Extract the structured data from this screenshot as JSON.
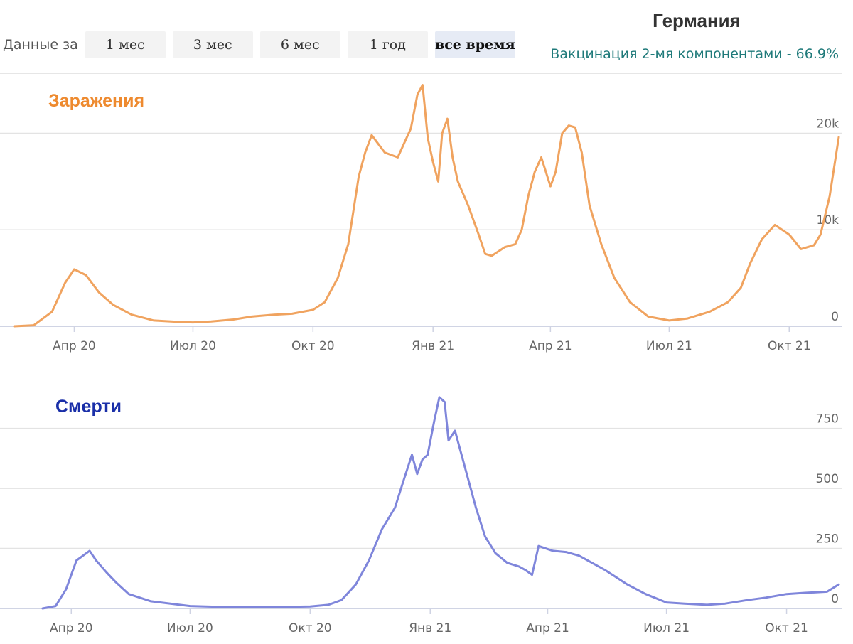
{
  "header": {
    "country": "Германия",
    "vaccination": "Вакцинация 2-мя компонентами - 66.9%"
  },
  "range": {
    "label": "Данные за",
    "buttons": [
      "1 мес",
      "3 мес",
      "6 мес",
      "1 год",
      "все время"
    ],
    "active": "все время"
  },
  "colors": {
    "cases": "#f0a35f",
    "cases_title": "#ee8a2f",
    "deaths": "#7f86db",
    "deaths_title": "#1a2fa8"
  },
  "chart_data": [
    {
      "type": "line",
      "title": "Заражения",
      "x_ticks": [
        "Апр 20",
        "Июл 20",
        "Окт 20",
        "Янв 21",
        "Апр 21",
        "Июл 21",
        "Окт 21"
      ],
      "y_ticks": [
        "0",
        "10k",
        "20k"
      ],
      "ylim": [
        0,
        26000
      ],
      "xlim": [
        "2020-02-15",
        "2021-11-08"
      ],
      "grid": true,
      "series": [
        {
          "x": [
            "2020-02-15",
            "2020-03-01",
            "2020-03-15",
            "2020-03-25",
            "2020-04-01",
            "2020-04-10",
            "2020-04-20",
            "2020-05-01",
            "2020-05-15",
            "2020-06-01",
            "2020-06-20",
            "2020-07-01",
            "2020-07-15",
            "2020-08-01",
            "2020-08-15",
            "2020-09-01",
            "2020-09-15",
            "2020-10-01",
            "2020-10-10",
            "2020-10-20",
            "2020-10-28",
            "2020-11-05",
            "2020-11-10",
            "2020-11-15",
            "2020-11-25",
            "2020-12-05",
            "2020-12-10",
            "2020-12-15",
            "2020-12-20",
            "2020-12-24",
            "2020-12-28",
            "2021-01-01",
            "2021-01-05",
            "2021-01-08",
            "2021-01-12",
            "2021-01-16",
            "2021-01-20",
            "2021-01-28",
            "2021-02-05",
            "2021-02-10",
            "2021-02-15",
            "2021-02-25",
            "2021-03-05",
            "2021-03-10",
            "2021-03-15",
            "2021-03-20",
            "2021-03-25",
            "2021-04-01",
            "2021-04-05",
            "2021-04-10",
            "2021-04-15",
            "2021-04-20",
            "2021-04-25",
            "2021-05-01",
            "2021-05-10",
            "2021-05-20",
            "2021-06-01",
            "2021-06-15",
            "2021-07-01",
            "2021-07-15",
            "2021-08-01",
            "2021-08-15",
            "2021-08-25",
            "2021-09-01",
            "2021-09-10",
            "2021-09-20",
            "2021-10-01",
            "2021-10-10",
            "2021-10-20",
            "2021-10-25",
            "2021-11-01",
            "2021-11-08"
          ],
          "y": [
            0,
            100,
            1500,
            4500,
            5900,
            5300,
            3500,
            2200,
            1200,
            600,
            450,
            400,
            500,
            700,
            1000,
            1200,
            1300,
            1700,
            2500,
            5000,
            8500,
            15500,
            18000,
            19800,
            18000,
            17500,
            19000,
            20500,
            24000,
            25000,
            19500,
            17000,
            15000,
            20000,
            21500,
            17500,
            15000,
            12500,
            9500,
            7500,
            7300,
            8200,
            8500,
            10000,
            13500,
            16000,
            17500,
            14500,
            16000,
            20000,
            20800,
            20600,
            18000,
            12500,
            8500,
            5000,
            2500,
            1000,
            600,
            800,
            1500,
            2500,
            4000,
            6500,
            9000,
            10500,
            9500,
            8000,
            8400,
            9500,
            13500,
            19600
          ]
        }
      ]
    },
    {
      "type": "line",
      "title": "Смерти",
      "x_ticks": [
        "Апр 20",
        "Июл 20",
        "Окт 20",
        "Янв 21",
        "Апр 21",
        "Июл 21",
        "Окт 21"
      ],
      "y_ticks": [
        "0",
        "250",
        "500",
        "750"
      ],
      "ylim": [
        0,
        900
      ],
      "xlim": [
        "2020-02-20",
        "2021-11-10"
      ],
      "grid": true,
      "series": [
        {
          "x": [
            "2020-03-10",
            "2020-03-20",
            "2020-03-28",
            "2020-04-05",
            "2020-04-10",
            "2020-04-15",
            "2020-04-20",
            "2020-04-28",
            "2020-05-05",
            "2020-05-15",
            "2020-06-01",
            "2020-07-01",
            "2020-08-01",
            "2020-09-01",
            "2020-10-01",
            "2020-10-15",
            "2020-10-25",
            "2020-11-05",
            "2020-11-15",
            "2020-11-25",
            "2020-12-05",
            "2020-12-12",
            "2020-12-18",
            "2020-12-22",
            "2020-12-26",
            "2020-12-30",
            "2021-01-04",
            "2021-01-08",
            "2021-01-12",
            "2021-01-15",
            "2021-01-20",
            "2021-01-25",
            "2021-01-30",
            "2021-02-05",
            "2021-02-12",
            "2021-02-20",
            "2021-03-01",
            "2021-03-10",
            "2021-03-15",
            "2021-03-20",
            "2021-03-25",
            "2021-04-05",
            "2021-04-15",
            "2021-04-25",
            "2021-05-05",
            "2021-05-15",
            "2021-06-01",
            "2021-06-15",
            "2021-07-01",
            "2021-07-15",
            "2021-08-01",
            "2021-08-15",
            "2021-09-01",
            "2021-09-15",
            "2021-10-01",
            "2021-10-15",
            "2021-11-01",
            "2021-11-10"
          ],
          "y": [
            0,
            10,
            80,
            200,
            220,
            240,
            200,
            150,
            110,
            60,
            30,
            10,
            5,
            5,
            8,
            15,
            35,
            100,
            200,
            330,
            420,
            540,
            640,
            560,
            620,
            640,
            780,
            880,
            860,
            700,
            740,
            640,
            540,
            420,
            300,
            230,
            190,
            175,
            160,
            140,
            260,
            240,
            235,
            220,
            190,
            160,
            100,
            60,
            25,
            20,
            15,
            20,
            35,
            45,
            60,
            65,
            70,
            100
          ]
        }
      ]
    }
  ]
}
